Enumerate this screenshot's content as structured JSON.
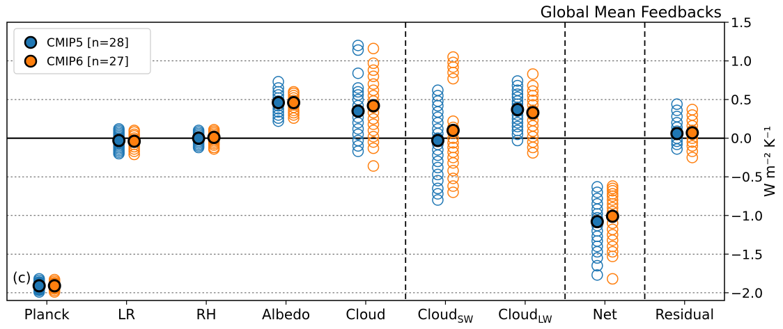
{
  "chart_data": {
    "type": "scatter",
    "title": "Global Mean Feedbacks",
    "panel_label": "(c)",
    "ylabel": "W m⁻² K⁻¹",
    "ylim": [
      -2.1,
      1.5
    ],
    "yticks": [
      1.5,
      1.0,
      0.5,
      0.0,
      -0.5,
      -1.0,
      -1.5,
      -2.0
    ],
    "ytick_labels": [
      "1.5",
      "1.0",
      "0.5",
      "0.0",
      "−0.5",
      "−1.0",
      "−1.5",
      "−2.0"
    ],
    "grid": "dotted horizontal at ticks",
    "legend_position": "top-left",
    "categories": [
      {
        "base": "Planck",
        "sub": ""
      },
      {
        "base": "LR",
        "sub": ""
      },
      {
        "base": "RH",
        "sub": ""
      },
      {
        "base": "Albedo",
        "sub": ""
      },
      {
        "base": "Cloud",
        "sub": ""
      },
      {
        "base": "Cloud",
        "sub": "SW"
      },
      {
        "base": "Cloud",
        "sub": "LW"
      },
      {
        "base": "Net",
        "sub": ""
      },
      {
        "base": "Residual",
        "sub": ""
      }
    ],
    "separators_after_category_index": [
      4,
      6,
      7
    ],
    "series": [
      {
        "name": "CMIP5 [n=28]",
        "color": "#1f77b4",
        "means": [
          -1.91,
          -0.03,
          0.0,
          0.46,
          0.35,
          -0.03,
          0.37,
          -1.08,
          0.06
        ],
        "points": [
          [
            -1.82,
            -1.84,
            -1.86,
            -1.87,
            -1.88,
            -1.89,
            -1.9,
            -1.9,
            -1.91,
            -1.91,
            -1.92,
            -1.92,
            -1.93,
            -1.93,
            -1.94,
            -1.95,
            -1.96,
            -1.97,
            -1.99
          ],
          [
            0.12,
            0.1,
            0.08,
            0.06,
            0.04,
            0.02,
            0.0,
            -0.02,
            -0.04,
            -0.06,
            -0.08,
            -0.1,
            -0.12,
            -0.14,
            -0.16,
            -0.18,
            -0.2
          ],
          [
            0.1,
            0.08,
            0.06,
            0.04,
            0.02,
            0.0,
            -0.02,
            -0.04,
            -0.06,
            -0.08,
            -0.1,
            -0.12
          ],
          [
            0.73,
            0.65,
            0.6,
            0.56,
            0.52,
            0.48,
            0.45,
            0.42,
            0.38,
            0.34,
            0.3,
            0.26,
            0.22
          ],
          [
            1.2,
            1.14,
            0.84,
            0.65,
            0.6,
            0.56,
            0.5,
            0.42,
            0.35,
            0.27,
            0.2,
            0.12,
            0.05,
            -0.03,
            -0.1,
            -0.17
          ],
          [
            0.62,
            0.55,
            0.48,
            0.42,
            0.34,
            0.27,
            0.2,
            0.12,
            0.06,
            0.0,
            -0.08,
            -0.15,
            -0.22,
            -0.3,
            -0.38,
            -0.47,
            -0.55,
            -0.65,
            -0.72,
            -0.8
          ],
          [
            0.74,
            0.68,
            0.62,
            0.57,
            0.53,
            0.48,
            0.44,
            0.4,
            0.35,
            0.3,
            0.25,
            0.2,
            0.15,
            0.1,
            0.05,
            -0.03
          ],
          [
            -0.63,
            -0.7,
            -0.78,
            -0.85,
            -0.92,
            -0.98,
            -1.03,
            -1.08,
            -1.13,
            -1.2,
            -1.27,
            -1.33,
            -1.4,
            -1.47,
            -1.55,
            -1.65,
            -1.77
          ],
          [
            0.44,
            0.36,
            0.28,
            0.2,
            0.14,
            0.09,
            0.05,
            0.0,
            -0.04,
            -0.08,
            -0.14
          ]
        ]
      },
      {
        "name": "CMIP6 [n=27]",
        "color": "#ff7f0e",
        "means": [
          -1.91,
          -0.04,
          0.01,
          0.46,
          0.42,
          0.1,
          0.33,
          -1.01,
          0.07
        ],
        "points": [
          [
            -1.83,
            -1.85,
            -1.87,
            -1.88,
            -1.89,
            -1.9,
            -1.91,
            -1.92,
            -1.93,
            -1.94,
            -1.95,
            -1.97,
            -1.99
          ],
          [
            0.1,
            0.08,
            0.05,
            0.03,
            0.0,
            -0.02,
            -0.05,
            -0.08,
            -0.11,
            -0.14,
            -0.17,
            -0.21
          ],
          [
            0.11,
            0.09,
            0.07,
            0.05,
            0.03,
            0.01,
            -0.01,
            -0.03,
            -0.05,
            -0.07,
            -0.09,
            -0.12,
            -0.14
          ],
          [
            0.6,
            0.58,
            0.55,
            0.52,
            0.49,
            0.46,
            0.43,
            0.4,
            0.36,
            0.33,
            0.3,
            0.26
          ],
          [
            1.16,
            0.97,
            0.88,
            0.8,
            0.7,
            0.62,
            0.55,
            0.48,
            0.4,
            0.33,
            0.25,
            0.18,
            0.1,
            0.02,
            -0.05,
            -0.13,
            -0.36
          ],
          [
            1.05,
            0.98,
            0.92,
            0.85,
            0.77,
            0.22,
            0.14,
            0.07,
            0.0,
            -0.06,
            -0.12,
            -0.18,
            -0.25,
            -0.32,
            -0.42,
            -0.52,
            -0.62,
            -0.7
          ],
          [
            0.83,
            0.68,
            0.61,
            0.55,
            0.49,
            0.43,
            0.36,
            0.3,
            0.23,
            0.16,
            0.09,
            0.02,
            -0.05,
            -0.12,
            -0.19
          ],
          [
            -0.62,
            -0.65,
            -0.68,
            -0.72,
            -0.75,
            -0.8,
            -0.85,
            -0.9,
            -0.95,
            -1.02,
            -1.1,
            -1.18,
            -1.25,
            -1.32,
            -1.4,
            -1.47,
            -1.53,
            -1.82
          ],
          [
            0.37,
            0.3,
            0.23,
            0.16,
            0.1,
            0.05,
            0.0,
            -0.05,
            -0.1,
            -0.17,
            -0.25
          ]
        ]
      }
    ]
  }
}
